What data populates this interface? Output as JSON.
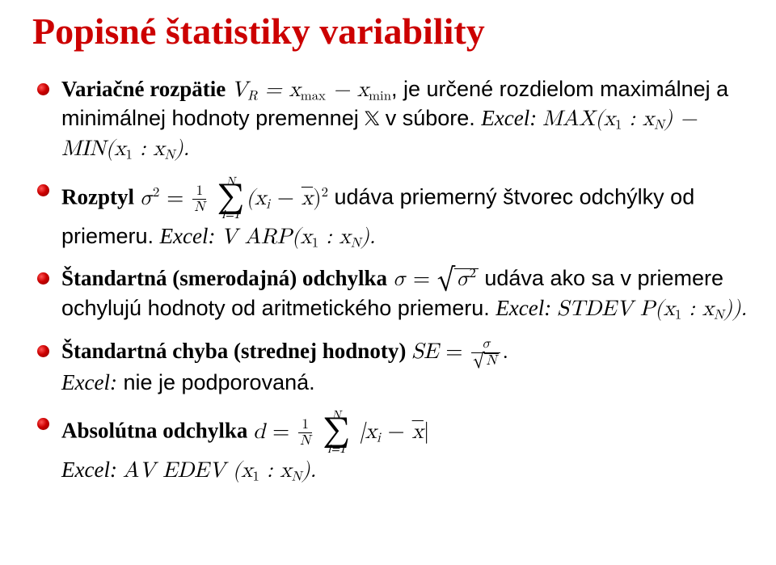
{
  "title": "Popisné štatistiky variability",
  "items": [
    {
      "term": "Variačné rozpätie ",
      "formula1": "V",
      "formula1_sub": "R",
      "equals1": " = x",
      "sub_max": "max",
      "minus": " − x",
      "sub_min": "min",
      "tail": ", je určené rozdielom maximálnej a minimálnej hodnoty premennej ",
      "xvar": "𝕏",
      "tail2": " v súbore.",
      "excel_label": " Excel: ",
      "excel_expr": "MAX(x",
      "excel_sub1": "1",
      "excel_mid": " : x",
      "excel_subN": "N",
      "excel_close": ") − MIN(x",
      "excel_sub1b": "1",
      "excel_midb": " : x",
      "excel_subNb": "N",
      "excel_end": ")."
    },
    {
      "term": "Rozptyl ",
      "sigma": "σ",
      "sup2": "2",
      "eq": " = ",
      "frac_num": "1",
      "frac_den": "N",
      "sum_top": "N",
      "sum_bot": "i=1",
      "inside": "(x",
      "inside_sub": "i",
      "inside_mid": " − ",
      "xbar": "x",
      "inside_close": ")",
      "power": "2",
      "tail": " udáva priemerný štvorec odchýlky od priemeru.",
      "excel_label": " Excel: ",
      "excel_expr": "V ARP(x",
      "excel_sub1": "1",
      "excel_mid": " : x",
      "excel_subN": "N",
      "excel_end": ")."
    },
    {
      "term": "Štandartná (smerodajná) odchylka ",
      "sigma": "σ",
      "eq": " = ",
      "rad": "σ",
      "rad_sup": "2",
      "tail": " udáva ako sa v priemere ochylujú hodnoty od aritmetického priemeru.",
      "excel_label": " Excel: ",
      "excel_expr": "STDEV P(x",
      "excel_sub1": "1",
      "excel_mid": " : x",
      "excel_subN": "N",
      "excel_end": "))."
    },
    {
      "term": "Štandartná chyba (strednej hodnoty) ",
      "SE": "SE",
      "eq": " = ",
      "frac_num": "σ",
      "frac_den": "N",
      "period": ".",
      "excel_label": "Excel:",
      "excel_text": " nie je podporovaná."
    },
    {
      "term": "Absolútna odchylka ",
      "d": "d",
      "eq": " = ",
      "frac_num": "1",
      "frac_den": "N",
      "sum_top": "N",
      "sum_bot": "i=1",
      "abs_open": "|x",
      "abs_sub": "i",
      "abs_mid": " − ",
      "xbar": "x",
      "abs_close": "|",
      "excel_label": "Excel: ",
      "excel_expr": "AV EDEV (x",
      "excel_sub1": "1",
      "excel_mid": " : x",
      "excel_subN": "N",
      "excel_end": ")."
    }
  ],
  "colors": {
    "title": "#cc0000",
    "bullet_light": "#ff5555",
    "bullet_dark": "#880000",
    "text": "#000000",
    "background": "#ffffff"
  },
  "typography": {
    "title_fontsize": 46,
    "body_fontsize": 27,
    "title_family": "serif",
    "body_family": "sans-serif"
  }
}
